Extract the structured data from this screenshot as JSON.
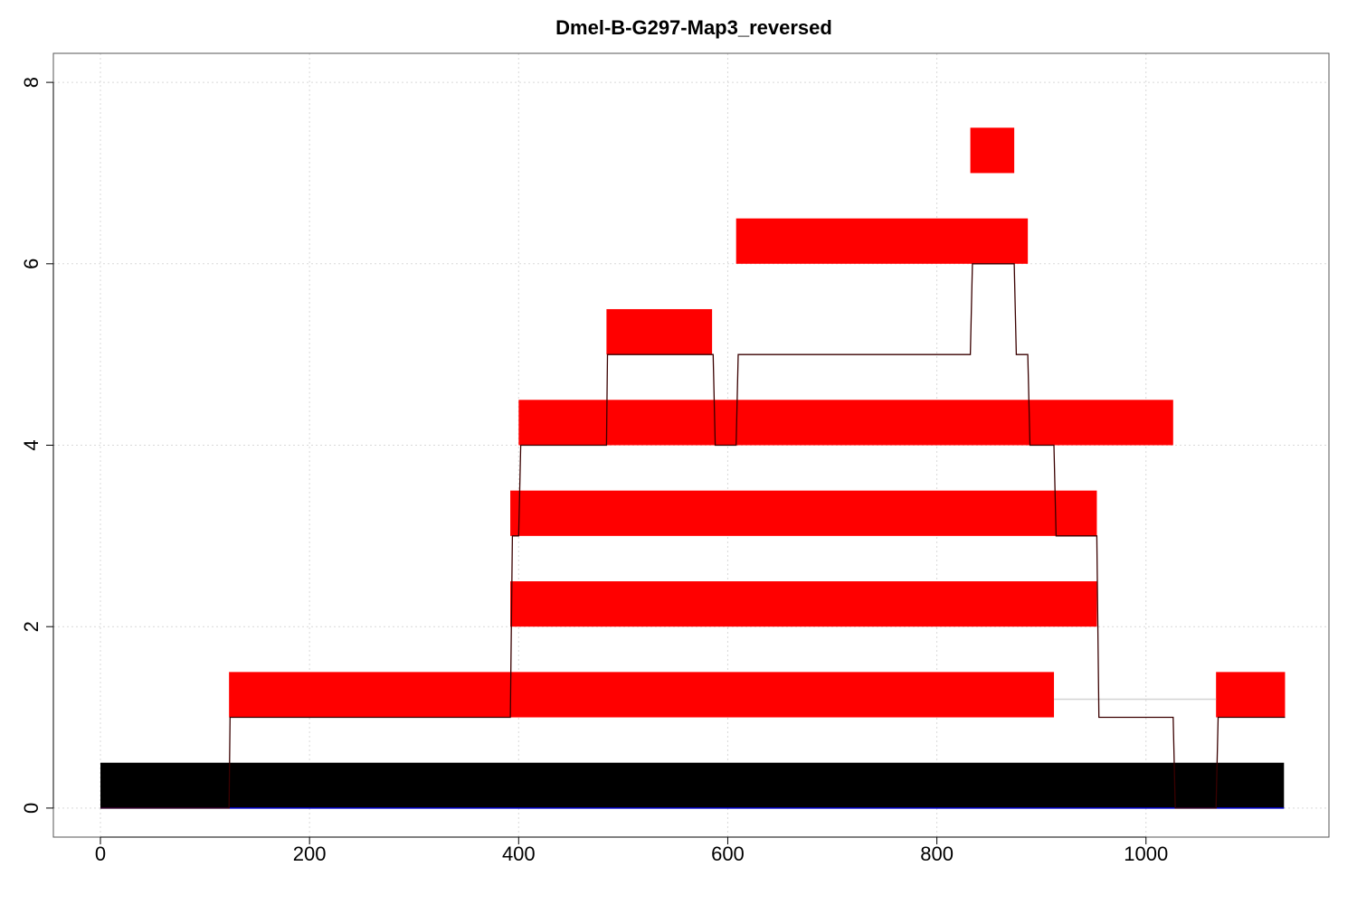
{
  "chart_data": {
    "type": "bar",
    "title": "Dmel-B-G297-Map3_reversed",
    "xlabel": "",
    "ylabel": "",
    "xlim": [
      -45,
      1175
    ],
    "ylim": [
      -0.32,
      8.32
    ],
    "x_ticks": [
      0,
      200,
      400,
      600,
      800,
      1000
    ],
    "y_ticks": [
      0,
      2,
      4,
      6,
      8
    ],
    "grid": true,
    "reference_bar": {
      "start": 0,
      "end": 1132,
      "level": 0,
      "color": "#000000"
    },
    "segments": [
      {
        "start": 123,
        "end": 912,
        "level": 1
      },
      {
        "start": 1067,
        "end": 1133,
        "level": 1
      },
      {
        "start": 392,
        "end": 953,
        "level": 2
      },
      {
        "start": 392,
        "end": 953,
        "level": 3
      },
      {
        "start": 400,
        "end": 1026,
        "level": 4
      },
      {
        "start": 484,
        "end": 585,
        "level": 5
      },
      {
        "start": 608,
        "end": 887,
        "level": 6
      },
      {
        "start": 832,
        "end": 874,
        "level": 7
      }
    ],
    "segment_height": 0.5,
    "segment_color": "#ff0000",
    "coverage_line": {
      "x": [
        0,
        123,
        124,
        392,
        394,
        400,
        402,
        484,
        485,
        586,
        588,
        608,
        610,
        832,
        834,
        874,
        876,
        887,
        889,
        912,
        914,
        953,
        955,
        1026,
        1028,
        1067,
        1069,
        1133
      ],
      "y": [
        0,
        0,
        1,
        1,
        3,
        3,
        4,
        4,
        5,
        5,
        4,
        4,
        5,
        5,
        6,
        6,
        5,
        5,
        4,
        4,
        3,
        3,
        1,
        1,
        0,
        0,
        1,
        1
      ],
      "color": "#3a0000"
    },
    "gap_line": {
      "x": [
        912,
        1067
      ],
      "y": 1.2,
      "color": "#d3d3d3"
    },
    "baseline_color": "#0000cc"
  }
}
